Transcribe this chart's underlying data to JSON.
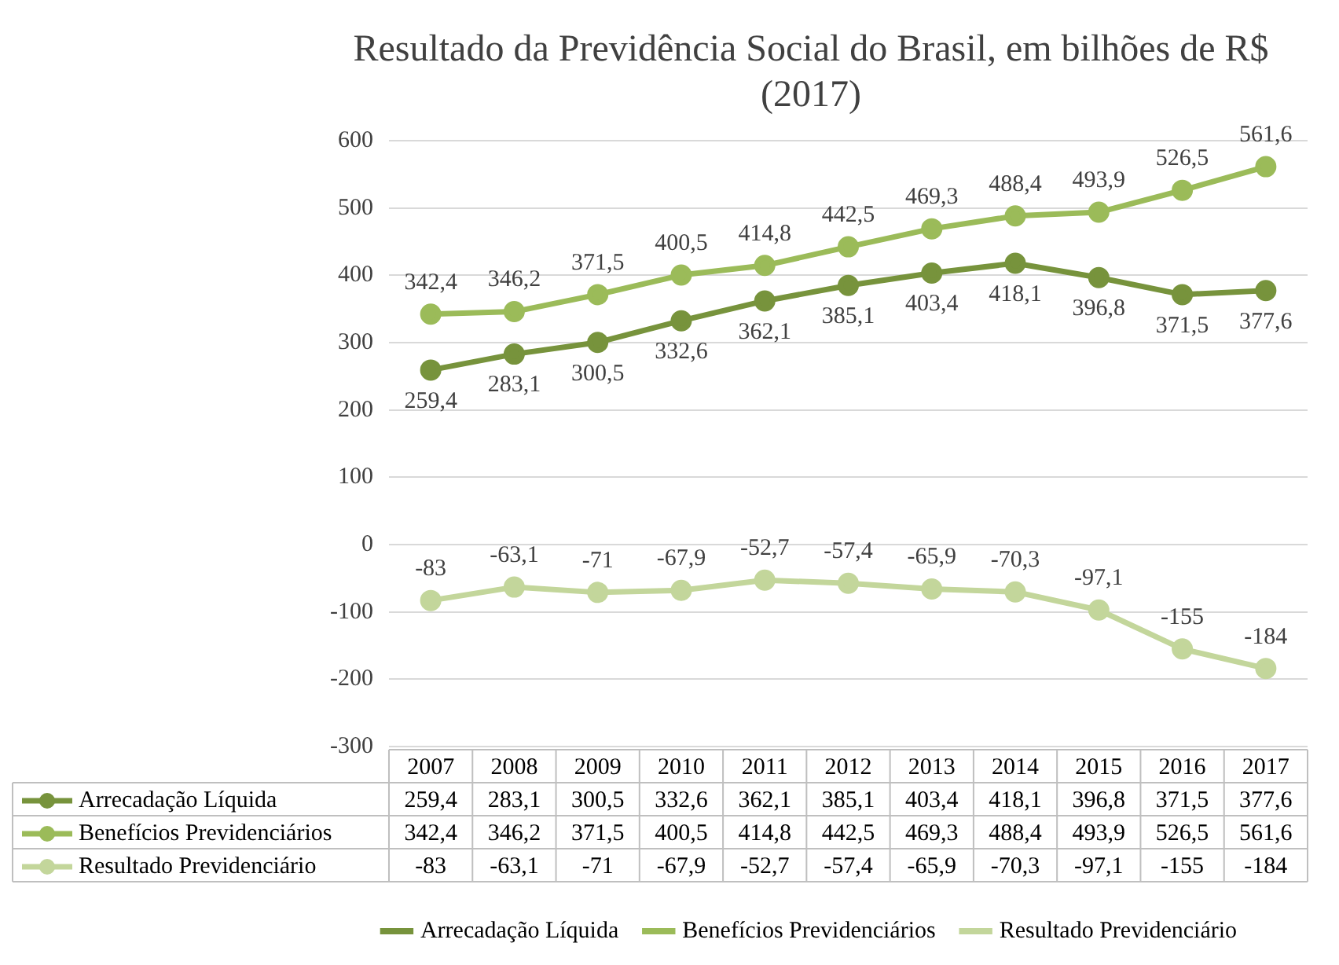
{
  "chart_data": {
    "type": "line",
    "title": "Resultado da Previdência Social do Brasil, em bilhões de R$ (2017)",
    "categories": [
      "2007",
      "2008",
      "2009",
      "2010",
      "2011",
      "2012",
      "2013",
      "2014",
      "2015",
      "2016",
      "2017"
    ],
    "series": [
      {
        "name": "Arrecadação Líquida",
        "color": "#77933c",
        "values": [
          259.4,
          283.1,
          300.5,
          332.6,
          362.1,
          385.1,
          403.4,
          418.1,
          396.8,
          371.5,
          377.6
        ],
        "value_labels": [
          "259,4",
          "283,1",
          "300,5",
          "332,6",
          "362,1",
          "385,1",
          "403,4",
          "418,1",
          "396,8",
          "371,5",
          "377,6"
        ]
      },
      {
        "name": "Benefícios Previdenciários",
        "color": "#9bbb59",
        "values": [
          342.4,
          346.2,
          371.5,
          400.5,
          414.8,
          442.5,
          469.3,
          488.4,
          493.9,
          526.5,
          561.6
        ],
        "value_labels": [
          "342,4",
          "346,2",
          "371,5",
          "400,5",
          "414,8",
          "442,5",
          "469,3",
          "488,4",
          "493,9",
          "526,5",
          "561,6"
        ]
      },
      {
        "name": "Resultado Previdenciário",
        "color": "#c3d69b",
        "values": [
          -83,
          -63.1,
          -71,
          -67.9,
          -52.7,
          -57.4,
          -65.9,
          -70.3,
          -97.1,
          -155,
          -184
        ],
        "value_labels": [
          "-83",
          "-63,1",
          "-71",
          "-67,9",
          "-52,7",
          "-57,4",
          "-65,9",
          "-70,3",
          "-97,1",
          "-155",
          "-184"
        ]
      }
    ],
    "ylim": [
      -300,
      600
    ],
    "yticks": [
      -300,
      -200,
      -100,
      0,
      100,
      200,
      300,
      400,
      500,
      600
    ],
    "grid": "y",
    "legend": "bottom",
    "marker": "circle",
    "line_style": "solid"
  }
}
